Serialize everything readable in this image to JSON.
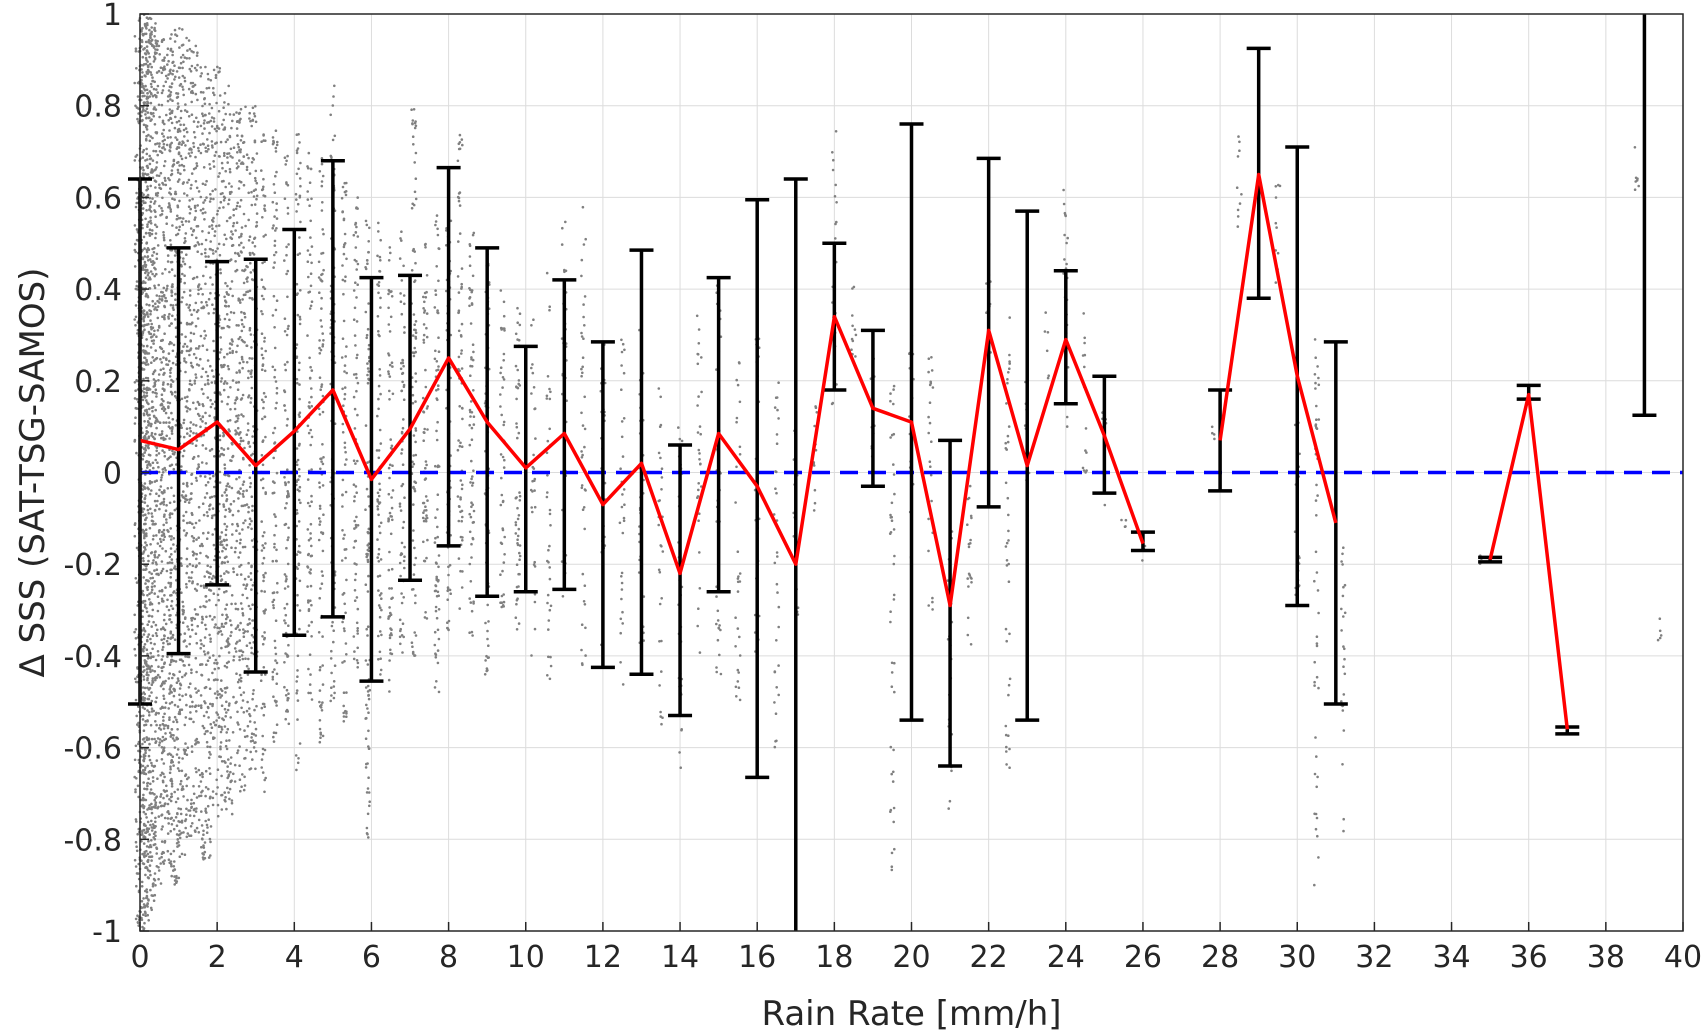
{
  "chart_data": {
    "type": "line",
    "xlabel": "Rain Rate [mm/h]",
    "ylabel": "Δ SSS (SAT-TSG-SAMOS)",
    "xlim": [
      0,
      40
    ],
    "ylim": [
      -1,
      1
    ],
    "xticks": [
      0,
      2,
      4,
      6,
      8,
      10,
      12,
      14,
      16,
      18,
      20,
      22,
      24,
      26,
      28,
      30,
      32,
      34,
      36,
      38,
      40
    ],
    "yticks": [
      -1,
      -0.8,
      -0.6,
      -0.4,
      -0.2,
      0,
      0.2,
      0.4,
      0.6,
      0.8,
      1
    ],
    "ytick_labels": [
      "-1",
      "-0.8",
      "-0.6",
      "-0.4",
      "-0.2",
      "0",
      "0.2",
      "0.4",
      "0.6",
      "0.8",
      "1"
    ],
    "grid": true,
    "series": [
      {
        "kind": "mean-line",
        "color": "#ff0000",
        "segments": [
          [
            [
              0,
              0.07
            ],
            [
              1,
              0.05
            ],
            [
              2,
              0.11
            ],
            [
              3,
              0.015
            ],
            [
              4,
              0.09
            ],
            [
              5,
              0.18
            ],
            [
              6,
              -0.015
            ],
            [
              7,
              0.095
            ],
            [
              8,
              0.25
            ],
            [
              9,
              0.11
            ],
            [
              10,
              0.01
            ],
            [
              11,
              0.085
            ],
            [
              12,
              -0.07
            ],
            [
              13,
              0.02
            ],
            [
              14,
              -0.22
            ],
            [
              15,
              0.085
            ],
            [
              16,
              -0.03
            ],
            [
              17,
              -0.2
            ],
            [
              18,
              0.34
            ],
            [
              19,
              0.14
            ],
            [
              20,
              0.11
            ],
            [
              21,
              -0.29
            ],
            [
              22,
              0.31
            ],
            [
              23,
              0.015
            ],
            [
              24,
              0.29
            ],
            [
              25,
              0.08
            ],
            [
              26,
              -0.155
            ]
          ],
          [
            [
              28,
              0.07
            ],
            [
              29,
              0.65
            ],
            [
              30,
              0.21
            ],
            [
              31,
              -0.11
            ]
          ],
          [
            [
              35,
              -0.19
            ],
            [
              36,
              0.17
            ],
            [
              37,
              -0.56
            ]
          ]
        ]
      },
      {
        "kind": "error-bars",
        "color": "#000000",
        "bars": [
          {
            "x": 0,
            "lo": -0.505,
            "hi": 0.64
          },
          {
            "x": 1,
            "lo": -0.395,
            "hi": 0.49
          },
          {
            "x": 2,
            "lo": -0.245,
            "hi": 0.46
          },
          {
            "x": 3,
            "lo": -0.435,
            "hi": 0.465
          },
          {
            "x": 4,
            "lo": -0.355,
            "hi": 0.53
          },
          {
            "x": 5,
            "lo": -0.315,
            "hi": 0.68
          },
          {
            "x": 6,
            "lo": -0.455,
            "hi": 0.425
          },
          {
            "x": 7,
            "lo": -0.235,
            "hi": 0.43
          },
          {
            "x": 8,
            "lo": -0.16,
            "hi": 0.665
          },
          {
            "x": 9,
            "lo": -0.27,
            "hi": 0.49
          },
          {
            "x": 10,
            "lo": -0.26,
            "hi": 0.275
          },
          {
            "x": 11,
            "lo": -0.255,
            "hi": 0.42
          },
          {
            "x": 12,
            "lo": -0.425,
            "hi": 0.285
          },
          {
            "x": 13,
            "lo": -0.44,
            "hi": 0.485
          },
          {
            "x": 14,
            "lo": -0.53,
            "hi": 0.06
          },
          {
            "x": 15,
            "lo": -0.26,
            "hi": 0.425
          },
          {
            "x": 16,
            "lo": -0.665,
            "hi": 0.595
          },
          {
            "x": 17,
            "lo": -1.0,
            "hi": 0.64
          },
          {
            "x": 18,
            "lo": 0.18,
            "hi": 0.5
          },
          {
            "x": 19,
            "lo": -0.03,
            "hi": 0.31
          },
          {
            "x": 20,
            "lo": -0.54,
            "hi": 0.76
          },
          {
            "x": 21,
            "lo": -0.64,
            "hi": 0.07
          },
          {
            "x": 22,
            "lo": -0.075,
            "hi": 0.685
          },
          {
            "x": 23,
            "lo": -0.54,
            "hi": 0.57
          },
          {
            "x": 24,
            "lo": 0.15,
            "hi": 0.44
          },
          {
            "x": 25,
            "lo": -0.045,
            "hi": 0.21
          },
          {
            "x": 26,
            "lo": -0.17,
            "hi": -0.13
          },
          {
            "x": 28,
            "lo": -0.04,
            "hi": 0.18
          },
          {
            "x": 29,
            "lo": 0.38,
            "hi": 0.925
          },
          {
            "x": 30,
            "lo": -0.29,
            "hi": 0.71
          },
          {
            "x": 31,
            "lo": -0.505,
            "hi": 0.285
          },
          {
            "x": 35,
            "lo": -0.195,
            "hi": -0.185
          },
          {
            "x": 36,
            "lo": 0.16,
            "hi": 0.19
          },
          {
            "x": 37,
            "lo": -0.57,
            "hi": -0.555
          },
          {
            "x": 39,
            "lo": 0.125,
            "hi": 1.0
          }
        ]
      },
      {
        "kind": "reference-line",
        "color": "#0000ff",
        "style": "dashed",
        "y": 0
      },
      {
        "kind": "scatter",
        "color": "#808080",
        "description_free": true,
        "columns": [
          {
            "x": 0.0,
            "lo": -1.0,
            "hi": 1.0
          },
          {
            "x": 0.1,
            "lo": -1.0,
            "hi": 1.0
          },
          {
            "x": 0.2,
            "lo": -1.0,
            "hi": 1.0
          },
          {
            "x": 0.3,
            "lo": -0.95,
            "hi": 1.0
          },
          {
            "x": 0.5,
            "lo": -0.9,
            "hi": 0.98
          },
          {
            "x": 0.7,
            "lo": -0.85,
            "hi": 0.95
          },
          {
            "x": 0.9,
            "lo": -0.9,
            "hi": 0.97
          },
          {
            "x": 1.1,
            "lo": -0.85,
            "hi": 0.97
          },
          {
            "x": 1.4,
            "lo": -0.8,
            "hi": 0.95
          },
          {
            "x": 1.7,
            "lo": -0.85,
            "hi": 0.9
          },
          {
            "x": 2.0,
            "lo": -0.75,
            "hi": 0.9
          },
          {
            "x": 2.3,
            "lo": -0.75,
            "hi": 0.85
          },
          {
            "x": 2.6,
            "lo": -0.7,
            "hi": 0.8
          },
          {
            "x": 2.9,
            "lo": -0.65,
            "hi": 0.8
          },
          {
            "x": 3.2,
            "lo": -0.7,
            "hi": 0.75
          },
          {
            "x": 3.5,
            "lo": -0.6,
            "hi": 0.75
          },
          {
            "x": 3.8,
            "lo": -0.55,
            "hi": 0.7
          },
          {
            "x": 4.1,
            "lo": -0.65,
            "hi": 0.75
          },
          {
            "x": 4.4,
            "lo": -0.5,
            "hi": 0.7
          },
          {
            "x": 4.7,
            "lo": -0.6,
            "hi": 0.7
          },
          {
            "x": 5.0,
            "lo": -0.5,
            "hi": 0.85
          },
          {
            "x": 5.3,
            "lo": -0.55,
            "hi": 0.65
          },
          {
            "x": 5.6,
            "lo": -0.45,
            "hi": 0.6
          },
          {
            "x": 5.9,
            "lo": -0.8,
            "hi": 0.55
          },
          {
            "x": 6.2,
            "lo": -0.45,
            "hi": 0.55
          },
          {
            "x": 6.5,
            "lo": -0.5,
            "hi": 0.5
          },
          {
            "x": 6.8,
            "lo": -0.4,
            "hi": 0.55
          },
          {
            "x": 7.1,
            "lo": -0.4,
            "hi": 0.8
          },
          {
            "x": 7.4,
            "lo": -0.35,
            "hi": 0.5
          },
          {
            "x": 7.7,
            "lo": -0.5,
            "hi": 0.6
          },
          {
            "x": 8.0,
            "lo": -0.35,
            "hi": 0.55
          },
          {
            "x": 8.3,
            "lo": -0.3,
            "hi": 0.75
          },
          {
            "x": 8.6,
            "lo": -0.4,
            "hi": 0.55
          },
          {
            "x": 9.0,
            "lo": -0.45,
            "hi": 0.5
          },
          {
            "x": 9.4,
            "lo": -0.3,
            "hi": 0.4
          },
          {
            "x": 9.8,
            "lo": -0.35,
            "hi": 0.4
          },
          {
            "x": 10.2,
            "lo": -0.4,
            "hi": 0.35
          },
          {
            "x": 10.6,
            "lo": -0.45,
            "hi": 0.45
          },
          {
            "x": 11.0,
            "lo": -0.3,
            "hi": 0.55
          },
          {
            "x": 11.5,
            "lo": -0.45,
            "hi": 0.6
          },
          {
            "x": 12.0,
            "lo": -0.4,
            "hi": 0.35
          },
          {
            "x": 12.5,
            "lo": -0.5,
            "hi": 0.3
          },
          {
            "x": 13.0,
            "lo": -0.45,
            "hi": 0.4
          },
          {
            "x": 13.5,
            "lo": -0.55,
            "hi": 0.2
          },
          {
            "x": 14.0,
            "lo": -0.7,
            "hi": 0.1
          },
          {
            "x": 14.5,
            "lo": -0.4,
            "hi": 0.35
          },
          {
            "x": 15.0,
            "lo": -0.45,
            "hi": 0.45
          },
          {
            "x": 15.5,
            "lo": -0.5,
            "hi": 0.25
          },
          {
            "x": 16.0,
            "lo": -0.4,
            "hi": 0.3
          },
          {
            "x": 16.5,
            "lo": -0.6,
            "hi": 0.2
          },
          {
            "x": 17.0,
            "lo": -0.35,
            "hi": 0.1
          },
          {
            "x": 17.5,
            "lo": -0.1,
            "hi": 0.2
          },
          {
            "x": 18.0,
            "lo": 0.1,
            "hi": 0.75
          },
          {
            "x": 18.5,
            "lo": 0.2,
            "hi": 0.5
          },
          {
            "x": 19.0,
            "lo": 0.0,
            "hi": 0.3
          },
          {
            "x": 19.5,
            "lo": -0.88,
            "hi": 0.2
          },
          {
            "x": 20.0,
            "lo": -0.2,
            "hi": 0.3
          },
          {
            "x": 20.5,
            "lo": -0.3,
            "hi": 0.3
          },
          {
            "x": 21.0,
            "lo": -0.75,
            "hi": -0.1
          },
          {
            "x": 21.5,
            "lo": -0.45,
            "hi": 0.05
          },
          {
            "x": 22.0,
            "lo": 0.2,
            "hi": 0.5
          },
          {
            "x": 22.5,
            "lo": -0.65,
            "hi": 0.35
          },
          {
            "x": 23.0,
            "lo": -0.1,
            "hi": 0.2
          },
          {
            "x": 23.5,
            "lo": 0.2,
            "hi": 0.35
          },
          {
            "x": 24.0,
            "lo": 0.1,
            "hi": 0.65
          },
          {
            "x": 24.5,
            "lo": 0.0,
            "hi": 0.35
          },
          {
            "x": 25.0,
            "lo": -0.1,
            "hi": 0.15
          },
          {
            "x": 25.5,
            "lo": -0.2,
            "hi": -0.1
          },
          {
            "x": 26.0,
            "lo": -0.2,
            "hi": -0.1
          },
          {
            "x": 27.8,
            "lo": 0.05,
            "hi": 0.1
          },
          {
            "x": 28.5,
            "lo": 0.5,
            "hi": 0.75
          },
          {
            "x": 29.5,
            "lo": 0.4,
            "hi": 0.65
          },
          {
            "x": 30.0,
            "lo": -0.3,
            "hi": 0.2
          },
          {
            "x": 30.5,
            "lo": -0.9,
            "hi": 0.3
          },
          {
            "x": 31.2,
            "lo": -0.8,
            "hi": -0.15
          },
          {
            "x": 34.8,
            "lo": -0.2,
            "hi": -0.18
          },
          {
            "x": 38.8,
            "lo": 0.6,
            "hi": 0.78
          },
          {
            "x": 39.4,
            "lo": -0.4,
            "hi": -0.28
          }
        ]
      }
    ]
  }
}
